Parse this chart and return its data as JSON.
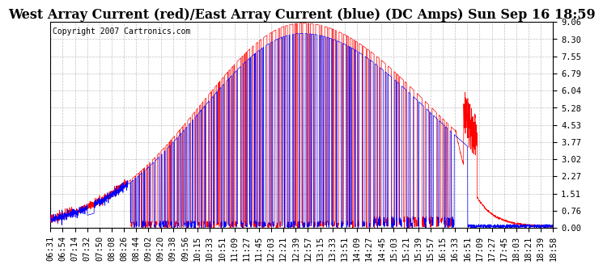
{
  "title": "West Array Current (red)/East Array Current (blue) (DC Amps) Sun Sep 16 18:59",
  "copyright": "Copyright 2007 Cartronics.com",
  "ylabel_ticks": [
    0.0,
    0.76,
    1.51,
    2.27,
    3.02,
    3.77,
    4.53,
    5.28,
    6.04,
    6.79,
    7.55,
    8.3,
    9.06
  ],
  "ymax": 9.06,
  "ymin": 0.0,
  "red_color": "#ff0000",
  "blue_color": "#0000ff",
  "bg_color": "#ffffff",
  "grid_color": "#b0b0b0",
  "title_fontsize": 11.5,
  "tick_fontsize": 7.5,
  "copyright_fontsize": 7.0,
  "xtick_labels": [
    "06:31",
    "06:54",
    "07:14",
    "07:32",
    "07:50",
    "08:08",
    "08:26",
    "08:44",
    "09:02",
    "09:20",
    "09:38",
    "09:56",
    "10:15",
    "10:33",
    "10:51",
    "11:09",
    "11:27",
    "11:45",
    "12:03",
    "12:21",
    "12:39",
    "12:57",
    "13:15",
    "13:33",
    "13:51",
    "14:09",
    "14:27",
    "14:45",
    "15:03",
    "15:21",
    "15:39",
    "15:57",
    "16:15",
    "16:33",
    "16:51",
    "17:09",
    "17:27",
    "17:45",
    "18:03",
    "18:21",
    "18:39",
    "18:58"
  ]
}
